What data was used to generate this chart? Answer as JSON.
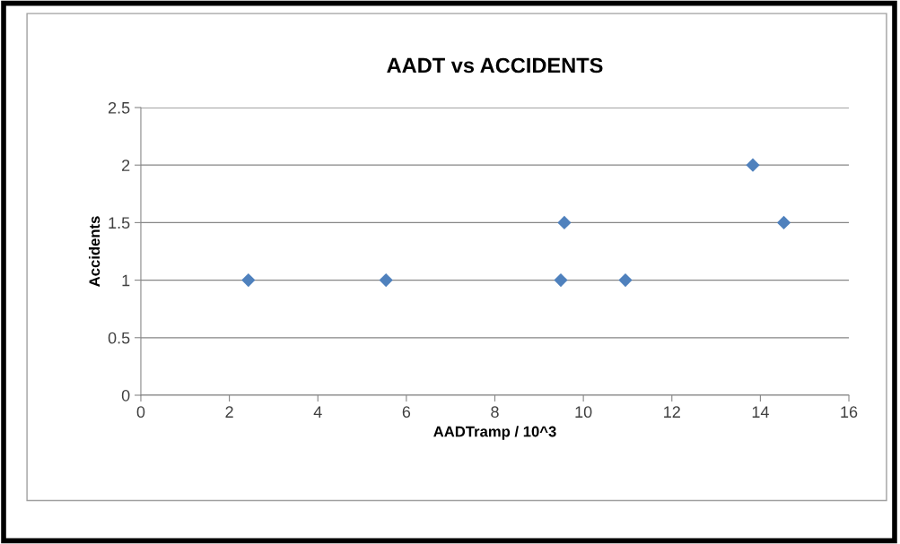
{
  "chart_data": {
    "type": "scatter",
    "title": "AADT vs ACCIDENTS",
    "xlabel": "AADTramp / 10^3",
    "ylabel": "Accidents",
    "x": [
      2.43,
      5.54,
      9.49,
      9.57,
      10.95,
      13.83,
      14.53
    ],
    "values": [
      1,
      1,
      1,
      1.5,
      1,
      2,
      1.5
    ],
    "color": "#4f81bd",
    "marker": "diamond",
    "xlim": [
      0,
      16
    ],
    "xticks": [
      0,
      2,
      4,
      6,
      8,
      10,
      12,
      14,
      16
    ],
    "ylim": [
      0,
      2.5
    ],
    "yticks": [
      0,
      {
        "value": 0.5,
        "label": "0.5"
      },
      1,
      {
        "value": 1.5,
        "label": "1.5"
      },
      2,
      {
        "value": 2.5,
        "label": "2.5"
      }
    ],
    "grid": "y",
    "legend": false
  }
}
